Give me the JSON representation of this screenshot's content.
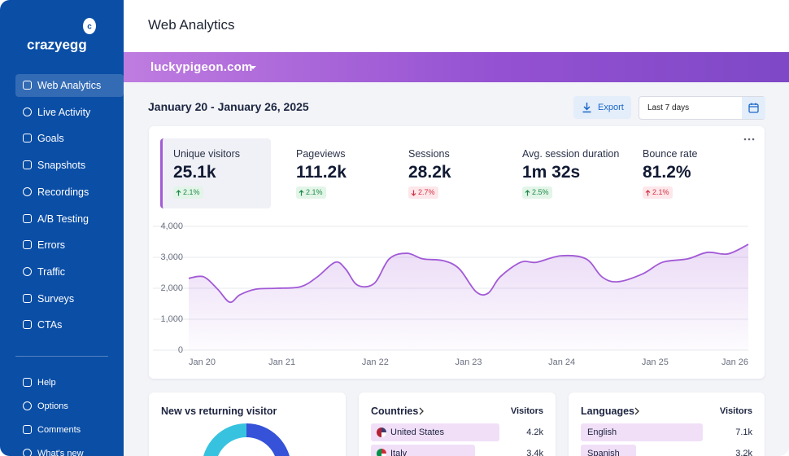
{
  "sidebar": {
    "logo": "crazyegg",
    "menu": [
      "Web Analytics",
      "Live Activity",
      "Goals",
      "Snapshots",
      "Recordings",
      "A/B Testing",
      "Errors",
      "Traffic",
      "Surveys",
      "CTAs"
    ],
    "active": 0,
    "footer_menu": [
      "Help",
      "Options",
      "Comments",
      "What's new"
    ]
  },
  "header": {
    "title": "Web Analytics"
  },
  "site_selector": {
    "label": "luckypigeon.com"
  },
  "toolbar": {
    "date_range": "January 20 - January 26, 2025",
    "export_button": "Export",
    "period": "Last 7 days"
  },
  "metrics": [
    {
      "label": "Unique visitors",
      "value": "25.1k",
      "change": "2.1%",
      "direction": "up",
      "color": "green"
    },
    {
      "label": "Pageviews",
      "value": "111.2k",
      "change": "2.1%",
      "direction": "up",
      "color": "green"
    },
    {
      "label": "Sessions",
      "value": "28.2k",
      "change": "2.7%",
      "direction": "down",
      "color": "red"
    },
    {
      "label": "Avg. session duration",
      "value": "1m 32s",
      "change": "2.5%",
      "direction": "up",
      "color": "green"
    },
    {
      "label": "Bounce rate",
      "value": "81.2%",
      "change": "2.1%",
      "direction": "up",
      "color": "red"
    }
  ],
  "active_metric": 0,
  "chart_data": {
    "type": "area",
    "color": "#a25ad6",
    "x": [
      0,
      0.16,
      0.31,
      0.44,
      0.55,
      0.72,
      0.94,
      1.2,
      1.38,
      1.57,
      1.68,
      1.81,
      1.99,
      2.15,
      2.34,
      2.51,
      2.73,
      2.9,
      3.08,
      3.21,
      3.34,
      3.56,
      3.73,
      3.99,
      4.26,
      4.43,
      4.6,
      4.87,
      5.08,
      5.35,
      5.56,
      5.78,
      6
    ],
    "values": [
      2320,
      2370,
      1970,
      1550,
      1790,
      1970,
      2000,
      2050,
      2370,
      2840,
      2630,
      2100,
      2160,
      2950,
      3130,
      2950,
      2890,
      2630,
      1890,
      1840,
      2370,
      2840,
      2840,
      3050,
      2950,
      2370,
      2210,
      2470,
      2840,
      2950,
      3160,
      3110,
      3420
    ],
    "xlim": [
      0,
      6
    ],
    "xticks": [
      {
        "value": 0,
        "label": "Jan 20"
      },
      {
        "value": 1,
        "label": "Jan 21"
      },
      {
        "value": 2,
        "label": "Jan 22"
      },
      {
        "value": 3,
        "label": "Jan 23"
      },
      {
        "value": 4,
        "label": "Jan 24"
      },
      {
        "value": 5,
        "label": "Jan 25"
      },
      {
        "value": 6,
        "label": "Jan 26"
      }
    ],
    "ylim": [
      0,
      4000
    ],
    "yticks": [
      0,
      {
        "value": 1000,
        "label": "1,000"
      },
      {
        "value": 2000,
        "label": "2,000"
      },
      {
        "value": 3000,
        "label": "3,000"
      },
      {
        "value": 4000,
        "label": "4,000"
      }
    ],
    "grid": true
  },
  "panels": {
    "visitor_types": {
      "title": "New vs returning visitor"
    },
    "countries": {
      "title": "Countries",
      "column": "Visitors",
      "rows": [
        {
          "name": "United States",
          "value": 4200,
          "value_label": "4.2k"
        },
        {
          "name": "Italy",
          "value": 3400,
          "value_label": "3.4k"
        }
      ]
    },
    "languages": {
      "title": "Languages",
      "column": "Visitors",
      "rows": [
        {
          "name": "English",
          "value": 7100,
          "value_label": "7.1k"
        },
        {
          "name": "Spanish",
          "value": 3200,
          "value_label": "3.2k"
        }
      ]
    }
  }
}
